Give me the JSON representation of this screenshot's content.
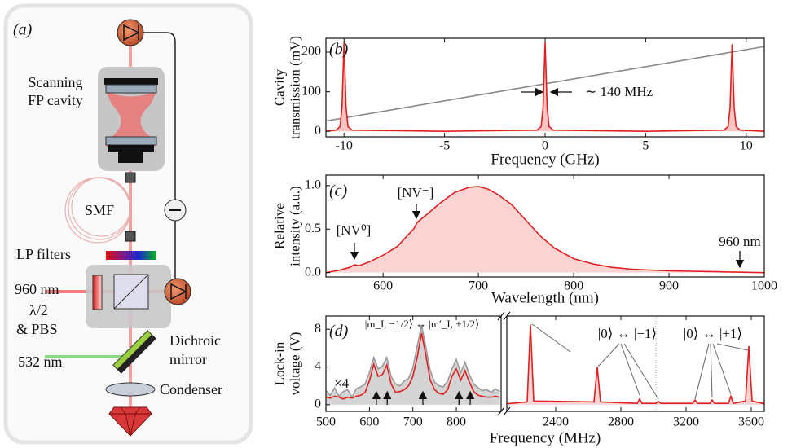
{
  "diagram": {
    "panel_label": "(a)",
    "cavity": [
      "Scanning",
      "FP cavity"
    ],
    "fiber": "SMF",
    "filters": "LP filters",
    "laser_red": "960 nm",
    "waveplate": [
      "λ/2",
      "& PBS"
    ],
    "dichroic": [
      "Dichroic",
      "mirror"
    ],
    "laser_green": "532 nm",
    "condenser": "Condenser"
  },
  "chart_data": [
    {
      "type": "line",
      "panel_label": "(b)",
      "xlabel": "Frequency (GHz)",
      "ylabel": [
        "Cavity",
        "transmission (mV)"
      ],
      "xlim": [
        -10.9,
        10.9
      ],
      "ylim": [
        -14,
        235
      ],
      "xticks": [
        -10,
        -5,
        0,
        5,
        10
      ],
      "yticks": [
        0,
        100,
        200
      ],
      "annotations": [
        "∼ 140 MHz"
      ],
      "series": [
        {
          "color": "#888888",
          "x": [
            -11,
            11
          ],
          "values": [
            25,
            215
          ]
        },
        {
          "color": "#e02020",
          "fill": "#f7c4c4",
          "x": [
            -10.9,
            -10.4,
            -10.2,
            -10.1,
            -10,
            -9.9,
            -9.8,
            -9.6,
            -5,
            -0.4,
            -0.2,
            -0.1,
            0,
            0.1,
            0.2,
            0.4,
            5,
            8.9,
            9.1,
            9.2,
            9.3,
            9.4,
            9.5,
            9.7,
            10.9
          ],
          "values": [
            0,
            3,
            12,
            60,
            225,
            60,
            12,
            3,
            0,
            3,
            12,
            60,
            225,
            60,
            12,
            3,
            0,
            3,
            12,
            60,
            220,
            60,
            12,
            3,
            0
          ]
        }
      ]
    },
    {
      "type": "line",
      "panel_label": "(c)",
      "xlabel": "Wavelength (nm)",
      "ylabel": [
        "Relative",
        "intensity (a.u.)"
      ],
      "xlim": [
        540,
        1000
      ],
      "ylim": [
        -0.05,
        1.12
      ],
      "xticks": [
        600,
        700,
        800,
        900,
        1000
      ],
      "yticks": [
        {
          "value": 0,
          "label": "0.0"
        },
        0.5,
        {
          "value": 1,
          "label": "1.0"
        }
      ],
      "annotations": [
        "[NV⁰]",
        "[NV⁻]",
        "960 nm"
      ],
      "series": [
        {
          "color": "#e02020",
          "fill": "#fbd3d3",
          "x": [
            540,
            555,
            565,
            570,
            575,
            585,
            600,
            615,
            625,
            632,
            636,
            645,
            660,
            675,
            690,
            700,
            710,
            720,
            735,
            750,
            765,
            780,
            800,
            820,
            840,
            860,
            880,
            900,
            950,
            1000
          ],
          "values": [
            0.0,
            0.03,
            0.06,
            0.09,
            0.08,
            0.12,
            0.2,
            0.3,
            0.42,
            0.5,
            0.58,
            0.66,
            0.8,
            0.92,
            0.98,
            0.99,
            0.96,
            0.9,
            0.78,
            0.6,
            0.42,
            0.28,
            0.16,
            0.1,
            0.06,
            0.04,
            0.03,
            0.02,
            0.01,
            0.0
          ]
        }
      ]
    },
    {
      "type": "line",
      "panel_label": "(d)",
      "ylabel": [
        "Lock-in",
        "voltage (V)"
      ],
      "xlim": [
        500,
        903
      ],
      "ylim": [
        -0.7,
        9.4
      ],
      "xticks": [
        500,
        600,
        700,
        800
      ],
      "yticks": [
        0,
        4,
        8
      ],
      "annotations": [
        "|m_I, −1/2⟩ ↔ |m′_I, +1/2⟩",
        "×4"
      ],
      "arrows_x": [
        616,
        641,
        723,
        806,
        832
      ],
      "series": [
        {
          "color": "#9a9a9a",
          "fill": "#d4d4d4",
          "x": [
            500,
            510,
            520,
            530,
            540,
            550,
            560,
            570,
            580,
            590,
            600,
            610,
            620,
            630,
            640,
            650,
            660,
            670,
            680,
            690,
            700,
            710,
            720,
            730,
            740,
            750,
            760,
            770,
            780,
            790,
            800,
            810,
            820,
            830,
            840,
            850,
            860,
            870,
            880,
            890,
            900
          ],
          "values": [
            1.5,
            1.0,
            1.8,
            0.9,
            1.4,
            1.6,
            0.8,
            1.7,
            1.9,
            2.2,
            3.4,
            5.0,
            3.8,
            4.1,
            5.0,
            3.0,
            2.2,
            2.0,
            2.5,
            2.8,
            3.9,
            6.2,
            8.4,
            6.1,
            3.6,
            2.4,
            2.0,
            1.9,
            2.5,
            3.8,
            4.8,
            3.4,
            4.5,
            3.2,
            2.2,
            1.8,
            1.5,
            1.6,
            1.3,
            1.7,
            1.4
          ]
        },
        {
          "color": "#e02020",
          "x": [
            500,
            510,
            520,
            530,
            540,
            550,
            560,
            570,
            580,
            590,
            600,
            610,
            620,
            630,
            640,
            650,
            660,
            670,
            680,
            690,
            700,
            710,
            720,
            730,
            740,
            750,
            760,
            770,
            780,
            790,
            800,
            810,
            820,
            830,
            840,
            850,
            860,
            870,
            880,
            890,
            900
          ],
          "values": [
            0.8,
            0.7,
            0.9,
            0.8,
            0.6,
            0.8,
            0.7,
            0.9,
            1.0,
            1.3,
            2.5,
            4.3,
            3.0,
            3.2,
            4.2,
            2.2,
            1.3,
            1.4,
            1.6,
            2.0,
            3.0,
            5.0,
            7.6,
            5.2,
            2.6,
            1.6,
            1.2,
            1.1,
            1.6,
            3.0,
            3.8,
            2.6,
            3.6,
            2.4,
            1.4,
            1.0,
            0.9,
            0.8,
            0.8,
            0.9,
            0.8
          ]
        }
      ]
    },
    {
      "type": "line",
      "xlabel": "Frequency (MHz)",
      "xlim": [
        2100,
        3680
      ],
      "ylim": [
        -0.7,
        9.4
      ],
      "xticks": [
        2400,
        2800,
        3200,
        3600
      ],
      "annotations": [
        "|0⟩ ↔ |−1⟩",
        "|0⟩ ↔ |+1⟩"
      ],
      "divider_x": 3015,
      "series": [
        {
          "color": "#e02020",
          "fill": "#fbd3d3",
          "x": [
            2100,
            2225,
            2245,
            2265,
            2635,
            2655,
            2675,
            2900,
            2915,
            2930,
            3015,
            3030,
            3045,
            3240,
            3255,
            3270,
            3345,
            3360,
            3375,
            3460,
            3475,
            3490,
            3565,
            3585,
            3605,
            3680
          ],
          "values": [
            0.1,
            0.3,
            8.5,
            0.4,
            0.3,
            4.0,
            0.3,
            0.15,
            0.6,
            0.15,
            0.15,
            0.35,
            0.15,
            0.15,
            0.5,
            0.15,
            0.15,
            0.5,
            0.15,
            0.15,
            0.9,
            0.15,
            0.4,
            6.2,
            0.4,
            0.1
          ]
        }
      ]
    }
  ]
}
